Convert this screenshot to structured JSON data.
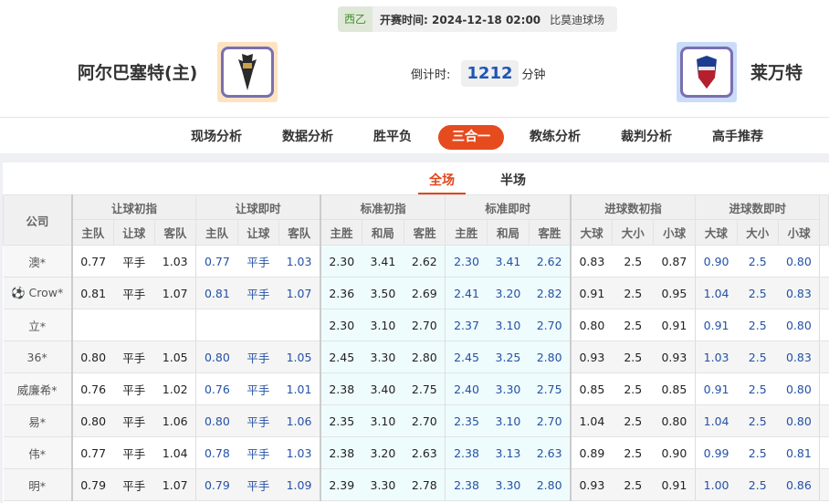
{
  "match": {
    "league": "西乙",
    "kickoff_label": "开赛时间:",
    "kickoff": "2024-12-18 02:00",
    "venue": "比莫迪球场",
    "home": "阿尔巴塞特(主)",
    "away": "莱万特",
    "countdown_label": "倒计时:",
    "countdown": "1212",
    "countdown_unit": "分钟"
  },
  "nav": [
    "现场分析",
    "数据分析",
    "胜平负",
    "三合一",
    "教练分析",
    "裁判分析",
    "高手推荐"
  ],
  "nav_active": "三合一",
  "subtabs": [
    "全场",
    "半场"
  ],
  "table": {
    "company": "公司",
    "groups": [
      "让球初指",
      "让球即时",
      "标准初指",
      "标准即时",
      "进球数初指",
      "进球数即时"
    ],
    "sub": [
      [
        "主队",
        "让球",
        "客队"
      ],
      [
        "主队",
        "让球",
        "客队"
      ],
      [
        "主胜",
        "和局",
        "客胜"
      ],
      [
        "主胜",
        "和局",
        "客胜"
      ],
      [
        "大球",
        "大小",
        "小球"
      ],
      [
        "大球",
        "大小",
        "小球"
      ]
    ],
    "rows": [
      {
        "c": "澳*",
        "v": [
          [
            "0.77",
            "平手",
            "1.03"
          ],
          [
            "0.77",
            "平手",
            "1.03"
          ],
          [
            "2.30",
            "3.41",
            "2.62"
          ],
          [
            "2.30",
            "3.41",
            "2.62"
          ],
          [
            "0.83",
            "2.5",
            "0.87"
          ],
          [
            "0.90",
            "2.5",
            "0.80"
          ]
        ]
      },
      {
        "c": "Crow*",
        "icon": "soccer-ball",
        "v": [
          [
            "0.81",
            "平手",
            "1.07"
          ],
          [
            "0.81",
            "平手",
            "1.07"
          ],
          [
            "2.36",
            "3.50",
            "2.69"
          ],
          [
            "2.41",
            "3.20",
            "2.82"
          ],
          [
            "0.91",
            "2.5",
            "0.95"
          ],
          [
            "1.04",
            "2.5",
            "0.83"
          ]
        ]
      },
      {
        "c": "立*",
        "v": [
          [
            "",
            "",
            ""
          ],
          [
            "",
            "",
            ""
          ],
          [
            "2.30",
            "3.10",
            "2.70"
          ],
          [
            "2.37",
            "3.10",
            "2.70"
          ],
          [
            "0.80",
            "2.5",
            "0.91"
          ],
          [
            "0.91",
            "2.5",
            "0.80"
          ]
        ]
      },
      {
        "c": "36*",
        "v": [
          [
            "0.80",
            "平手",
            "1.05"
          ],
          [
            "0.80",
            "平手",
            "1.05"
          ],
          [
            "2.45",
            "3.30",
            "2.80"
          ],
          [
            "2.45",
            "3.25",
            "2.80"
          ],
          [
            "0.93",
            "2.5",
            "0.93"
          ],
          [
            "1.03",
            "2.5",
            "0.83"
          ]
        ]
      },
      {
        "c": "威廉希*",
        "v": [
          [
            "0.76",
            "平手",
            "1.02"
          ],
          [
            "0.76",
            "平手",
            "1.01"
          ],
          [
            "2.38",
            "3.40",
            "2.75"
          ],
          [
            "2.40",
            "3.30",
            "2.75"
          ],
          [
            "0.85",
            "2.5",
            "0.85"
          ],
          [
            "0.91",
            "2.5",
            "0.80"
          ]
        ]
      },
      {
        "c": "易*",
        "v": [
          [
            "0.80",
            "平手",
            "1.06"
          ],
          [
            "0.80",
            "平手",
            "1.06"
          ],
          [
            "2.35",
            "3.10",
            "2.70"
          ],
          [
            "2.35",
            "3.10",
            "2.70"
          ],
          [
            "1.04",
            "2.5",
            "0.80"
          ],
          [
            "1.04",
            "2.5",
            "0.80"
          ]
        ]
      },
      {
        "c": "伟*",
        "v": [
          [
            "0.77",
            "平手",
            "1.04"
          ],
          [
            "0.78",
            "平手",
            "1.03"
          ],
          [
            "2.38",
            "3.20",
            "2.63"
          ],
          [
            "2.38",
            "3.13",
            "2.63"
          ],
          [
            "0.89",
            "2.5",
            "0.90"
          ],
          [
            "0.99",
            "2.5",
            "0.81"
          ]
        ]
      },
      {
        "c": "明*",
        "v": [
          [
            "0.79",
            "平手",
            "1.07"
          ],
          [
            "0.79",
            "平手",
            "1.09"
          ],
          [
            "2.39",
            "3.30",
            "2.78"
          ],
          [
            "2.38",
            "3.30",
            "2.80"
          ],
          [
            "0.93",
            "2.5",
            "0.91"
          ],
          [
            "1.00",
            "2.5",
            "0.86"
          ]
        ]
      }
    ]
  },
  "colors": {
    "accent": "#e64b1e",
    "live_value": "#2451a6",
    "std_bg": "#effcfd"
  }
}
